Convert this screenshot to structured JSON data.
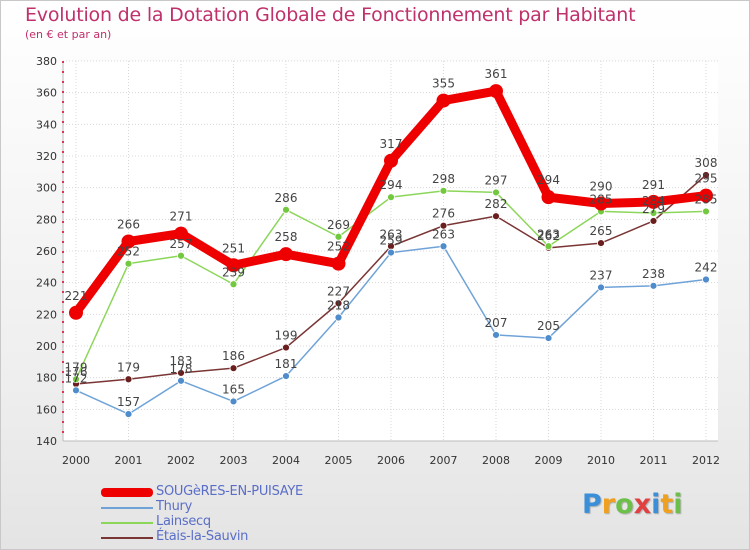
{
  "header": {
    "title": "Evolution de la Dotation Globale de Fonctionnement par Habitant",
    "subtitle": "(en € et par an)"
  },
  "chart_data": {
    "type": "line",
    "title": "Evolution de la Dotation Globale de Fonctionnement par Habitant",
    "subtitle": "(en € et par an)",
    "xlabel": "",
    "ylabel": "",
    "ylim": [
      140,
      380
    ],
    "yticks": [
      "140",
      "160",
      "180",
      "200",
      "220",
      "240",
      "260",
      "280",
      "300",
      "320",
      "340",
      "360",
      "380"
    ],
    "grid": true,
    "categories": [
      "2000",
      "2001",
      "2002",
      "2003",
      "2004",
      "2005",
      "2006",
      "2007",
      "2008",
      "2009",
      "2010",
      "2011",
      "2012"
    ],
    "series": [
      {
        "name": "Étais-la-Sauvin",
        "color": "#7a3535",
        "point_color": "#6b1e1e",
        "values": [
          176,
          179,
          183,
          186,
          199,
          227,
          263,
          276,
          282,
          262,
          265,
          279,
          308
        ],
        "labels": [
          "176",
          "179",
          "183",
          "186",
          "199",
          "227",
          "263",
          "276",
          "282",
          "262",
          "265",
          "279",
          "308"
        ]
      },
      {
        "name": "Lainsecq",
        "color": "#8cd65a",
        "point_color": "#72c83e",
        "values": [
          179,
          252,
          257,
          239,
          286,
          269,
          294,
          298,
          297,
          263,
          285,
          284,
          285
        ],
        "labels": [
          "179",
          "252",
          "257",
          "239",
          "286",
          "269",
          "294",
          "298",
          "297",
          "263",
          "285",
          "284",
          "285"
        ]
      },
      {
        "name": "Thury",
        "color": "#6fa3d8",
        "point_color": "#4f8ccc",
        "values": [
          172,
          157,
          178,
          165,
          181,
          218,
          259,
          263,
          207,
          205,
          237,
          238,
          242
        ],
        "labels": [
          "172",
          "157",
          "178",
          "165",
          "181",
          "218",
          "259",
          "263",
          "207",
          "205",
          "237",
          "238",
          "242"
        ]
      },
      {
        "name": "SOUGèRES-EN-PUISAYE",
        "color": "#ee0000",
        "point_color": "#ee0000",
        "values": [
          221,
          266,
          271,
          251,
          258,
          252,
          317,
          355,
          361,
          294,
          290,
          291,
          295
        ],
        "labels": [
          "221",
          "266",
          "271",
          "251",
          "258",
          "252",
          "317",
          "355",
          "361",
          "294",
          "290",
          "291",
          "295"
        ]
      }
    ]
  },
  "legend": {
    "items": [
      {
        "label": "SOUGèRES-EN-PUISAYE",
        "color": "#ee0000"
      },
      {
        "label": "Thury",
        "color": "#6fa3d8"
      },
      {
        "label": "Lainsecq",
        "color": "#8cd65a"
      },
      {
        "label": "Étais-la-Sauvin",
        "color": "#7a3535"
      }
    ]
  },
  "logo": {
    "text": "Proxiti",
    "letters": [
      {
        "ch": "P",
        "color": "#3a8fd8"
      },
      {
        "ch": "r",
        "color": "#f0a020"
      },
      {
        "ch": "o",
        "color": "#6cc04a"
      },
      {
        "ch": "x",
        "color": "#e04040"
      },
      {
        "ch": "i",
        "color": "#3a8fd8"
      },
      {
        "ch": "t",
        "color": "#f0a020"
      },
      {
        "ch": "i",
        "color": "#6cc04a"
      }
    ]
  }
}
